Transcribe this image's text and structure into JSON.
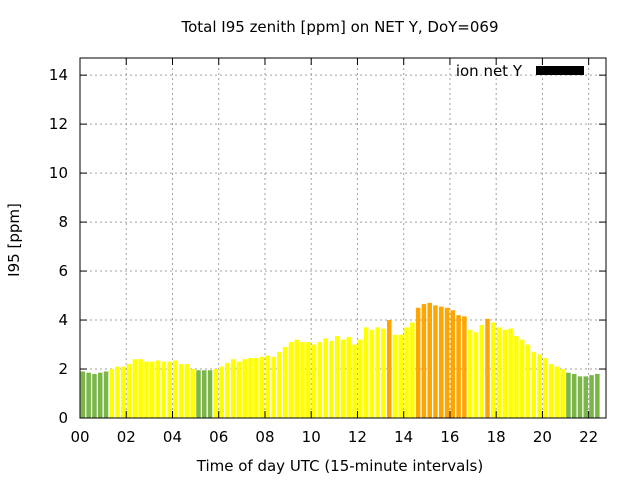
{
  "chart_data": {
    "type": "bar",
    "title": "Total I95 zenith [ppm] on NET Y, DoY=069",
    "xlabel": "Time of day UTC (15-minute intervals)",
    "ylabel": "I95 [ppm]",
    "ylim": [
      0,
      14.7
    ],
    "xlim": [
      0,
      22.75
    ],
    "x_ticks": [
      "00",
      "02",
      "04",
      "06",
      "08",
      "10",
      "12",
      "14",
      "16",
      "18",
      "20",
      "22"
    ],
    "x_tick_values": [
      0,
      2,
      4,
      6,
      8,
      10,
      12,
      14,
      16,
      18,
      20,
      22
    ],
    "y_ticks": [
      "0",
      "2",
      "4",
      "6",
      "8",
      "10",
      "12",
      "14"
    ],
    "y_tick_values": [
      0,
      2,
      4,
      6,
      8,
      10,
      12,
      14
    ],
    "grid": true,
    "legend_position": "top-right",
    "series": [
      {
        "name": "ion net Y",
        "color": "#000000",
        "interval_hours": 0.25,
        "values": [
          1.9,
          1.85,
          1.8,
          1.85,
          1.9,
          2.0,
          2.1,
          2.1,
          2.2,
          2.4,
          2.4,
          2.3,
          2.3,
          2.35,
          2.3,
          2.3,
          2.35,
          2.2,
          2.2,
          2.0,
          1.95,
          1.95,
          1.95,
          2.0,
          2.1,
          2.25,
          2.4,
          2.3,
          2.4,
          2.45,
          2.45,
          2.5,
          2.55,
          2.5,
          2.7,
          2.9,
          3.1,
          3.2,
          3.1,
          3.1,
          3.0,
          3.1,
          3.25,
          3.15,
          3.35,
          3.2,
          3.3,
          3.0,
          3.2,
          3.7,
          3.6,
          3.7,
          3.65,
          4.0,
          3.4,
          3.4,
          3.7,
          3.9,
          4.5,
          4.65,
          4.7,
          4.6,
          4.55,
          4.5,
          4.4,
          4.2,
          4.15,
          3.6,
          3.5,
          3.8,
          4.05,
          3.9,
          3.7,
          3.6,
          3.65,
          3.35,
          3.2,
          3.0,
          2.7,
          2.6,
          2.45,
          2.2,
          2.1,
          2.0,
          1.85,
          1.8,
          1.7,
          1.7,
          1.75,
          1.8
        ]
      }
    ],
    "level_colors": [
      {
        "threshold": 2.0,
        "color": "#7ab648"
      },
      {
        "threshold": 4.0,
        "color": "#ffff00"
      },
      {
        "threshold": 99,
        "color": "#ffa500"
      }
    ]
  }
}
